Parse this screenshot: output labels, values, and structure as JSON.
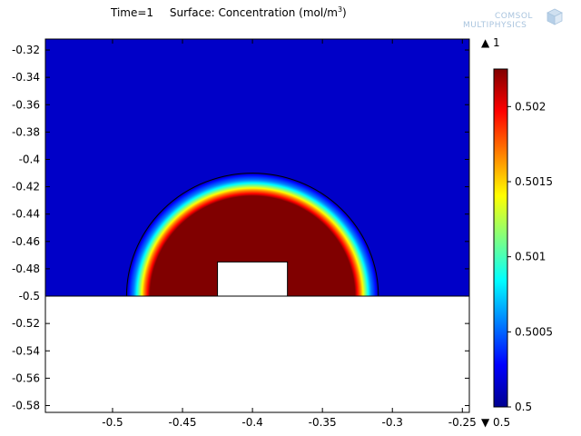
{
  "header": {
    "time_label": "Time=1",
    "surface_label": "Surface: Concentration (mol/m",
    "surface_superscript": "3",
    "surface_close": ")"
  },
  "logo": {
    "line1": "COMSOL",
    "line2": "MULTIPHYSICS"
  },
  "chart_data": {
    "type": "heatmap",
    "title": "Time=1   Surface: Concentration (mol/m³)",
    "xlim": [
      -0.548,
      -0.245
    ],
    "ylim": [
      -0.585,
      -0.312
    ],
    "xticks": [
      -0.5,
      -0.45,
      -0.4,
      -0.35,
      -0.3,
      -0.25
    ],
    "xtick_labels": [
      "-0.5",
      "-0.45",
      "-0.4",
      "-0.35",
      "-0.3",
      "-0.25"
    ],
    "yticks": [
      -0.32,
      -0.34,
      -0.36,
      -0.38,
      -0.4,
      -0.42,
      -0.44,
      -0.46,
      -0.48,
      -0.5,
      -0.52,
      -0.54,
      -0.56,
      -0.58
    ],
    "ytick_labels": [
      "-0.32",
      "-0.34",
      "-0.36",
      "-0.38",
      "-0.4",
      "-0.42",
      "-0.44",
      "-0.46",
      "-0.48",
      "-0.5",
      "-0.52",
      "-0.54",
      "-0.56",
      "-0.58"
    ],
    "domain": {
      "x": [
        -0.548,
        -0.245
      ],
      "y": [
        -0.5,
        -0.312
      ]
    },
    "circle_center": [
      -0.4,
      -0.5
    ],
    "circle_radius": 0.09,
    "notch": {
      "x": [
        -0.425,
        -0.375
      ],
      "y": [
        -0.5,
        -0.475
      ]
    },
    "high_region_outer_radius": 0.075,
    "colorbar": {
      "min": 0.5,
      "max": 0.50225,
      "ticks": [
        0.5,
        0.5005,
        0.501,
        0.5015,
        0.502
      ],
      "tick_labels": [
        "0.5",
        "0.5005",
        "0.501",
        "0.5015",
        "0.502"
      ],
      "max_marker": "▲ 1",
      "min_marker": "▼ 0.5",
      "colormap": [
        "#00008f",
        "#0000ff",
        "#0080ff",
        "#00ffff",
        "#80ff80",
        "#ffff00",
        "#ff8000",
        "#ff0000",
        "#800000"
      ]
    }
  }
}
